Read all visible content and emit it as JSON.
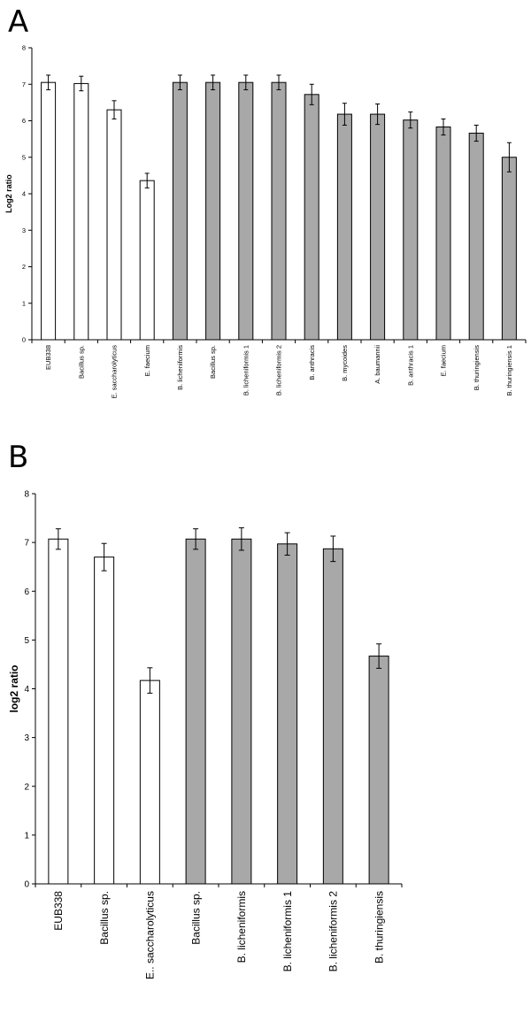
{
  "panels": [
    {
      "letter": "A",
      "ylabel": "Log2 ratio",
      "ylim": [
        0,
        8
      ],
      "yticks": [
        0,
        1,
        2,
        3,
        4,
        5,
        6,
        7,
        8
      ]
    },
    {
      "letter": "B",
      "ylabel": "log2 ratio",
      "ylim": [
        0,
        8
      ],
      "yticks": [
        0,
        1,
        2,
        3,
        4,
        5,
        6,
        7,
        8
      ]
    }
  ],
  "colors": {
    "white_bar": "#ffffff",
    "gray_bar": "#a8a8a8",
    "stroke": "#000000"
  },
  "chart_data": [
    {
      "type": "bar",
      "title": "",
      "xlabel": "",
      "ylabel": "Log2 ratio",
      "ylim": [
        0,
        8
      ],
      "grid": false,
      "categories": [
        "EUB338",
        "Bacillus sp.",
        "E. saccharolyticus",
        "E. faecium",
        "B. licheniformis",
        "Bacillus sp.",
        "B. licheniformis 1",
        "B. licheniformis 2",
        "B. anthracis",
        "B. mycoides",
        "A. baumannii",
        "B. anthracis 1",
        "E. faecium",
        "B. thuringiensis",
        "B. thuringiensis 1"
      ],
      "values": [
        7.05,
        7.02,
        6.3,
        4.36,
        7.05,
        7.05,
        7.05,
        7.05,
        6.72,
        6.18,
        6.18,
        6.02,
        5.83,
        5.66,
        5.0
      ],
      "errors": [
        0.2,
        0.2,
        0.25,
        0.2,
        0.2,
        0.2,
        0.2,
        0.2,
        0.28,
        0.3,
        0.28,
        0.22,
        0.22,
        0.22,
        0.4
      ],
      "fills": [
        "white",
        "white",
        "white",
        "white",
        "gray",
        "gray",
        "gray",
        "gray",
        "gray",
        "gray",
        "gray",
        "gray",
        "gray",
        "gray",
        "gray"
      ]
    },
    {
      "type": "bar",
      "title": "",
      "xlabel": "",
      "ylabel": "log2 ratio",
      "ylim": [
        0,
        8
      ],
      "grid": false,
      "categories": [
        "EUB338",
        "Bacillus sp.",
        "E.. saccharolyticus",
        "Bacillus sp.",
        "B. licheniformis",
        "B. licheniformis 1",
        "B. licheniformis 2",
        "B. thuringiensis"
      ],
      "values": [
        7.07,
        6.7,
        4.17,
        7.07,
        7.07,
        6.97,
        6.87,
        4.67
      ],
      "errors": [
        0.21,
        0.28,
        0.26,
        0.21,
        0.23,
        0.23,
        0.26,
        0.25
      ],
      "fills": [
        "white",
        "white",
        "white",
        "gray",
        "gray",
        "gray",
        "gray",
        "gray"
      ]
    }
  ]
}
